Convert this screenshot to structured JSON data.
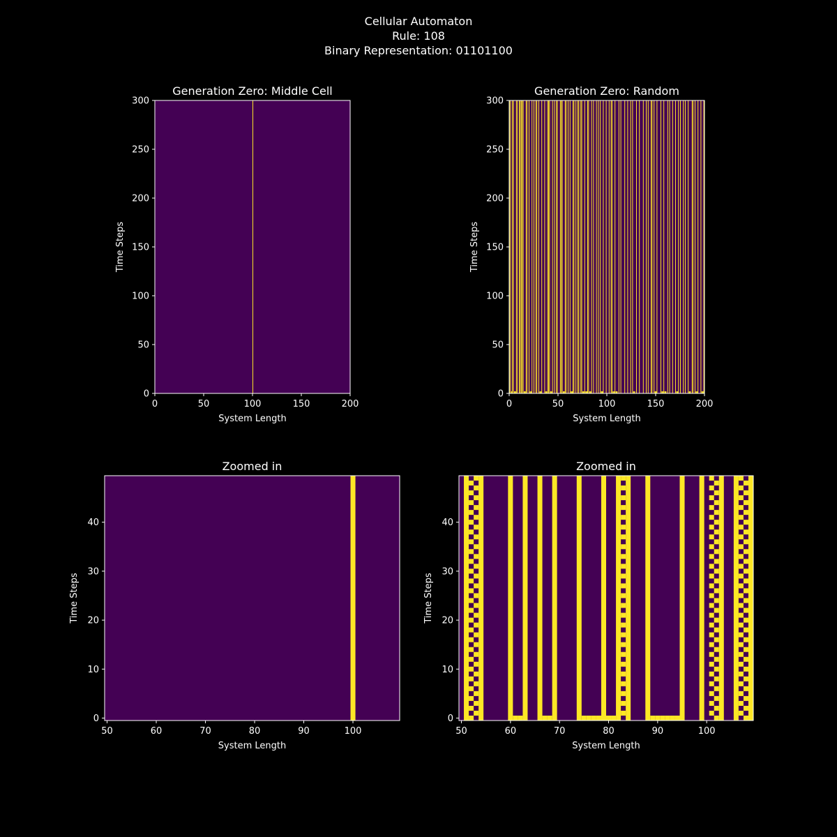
{
  "figure": {
    "title_lines": [
      "Cellular Automaton",
      "Rule: 108",
      "Binary Representation: 01101100"
    ]
  },
  "colors": {
    "background": "#000000",
    "dead": "#440154",
    "alive": "#fde725",
    "axis": "#ffffff"
  },
  "chart_data": [
    {
      "type": "heatmap",
      "title": "Generation Zero: Middle Cell",
      "xlabel": "System Length",
      "ylabel": "Time Steps",
      "xlim": [
        0,
        200
      ],
      "ylim": [
        0,
        300
      ],
      "xticks": [
        0,
        50,
        100,
        150,
        200
      ],
      "yticks": [
        0,
        50,
        100,
        150,
        200,
        250,
        300
      ],
      "alive_columns": [
        100
      ],
      "first_row_extra": [],
      "stripe_style": "thin"
    },
    {
      "type": "heatmap",
      "title": "Generation Zero: Random",
      "xlabel": "System Length",
      "ylabel": "Time Steps",
      "xlim": [
        0,
        200
      ],
      "ylim": [
        0,
        300
      ],
      "xticks": [
        0,
        50,
        100,
        150,
        200
      ],
      "yticks": [
        0,
        50,
        100,
        150,
        200,
        250,
        300
      ],
      "alive_columns": [
        0,
        1,
        3,
        4,
        7,
        8,
        10,
        11,
        12,
        13,
        14,
        17,
        18,
        20,
        23,
        25,
        27,
        28,
        30,
        33,
        36,
        39,
        40,
        41,
        44,
        46,
        48,
        49,
        52,
        53,
        54,
        57,
        58,
        60,
        62,
        65,
        66,
        68,
        70,
        71,
        73,
        74,
        77,
        80,
        81,
        84,
        86,
        89,
        91,
        93,
        96,
        99,
        102,
        104,
        105,
        108,
        112,
        114,
        118,
        121,
        124,
        126,
        130,
        133,
        137,
        140,
        142,
        145,
        146,
        148,
        151,
        155,
        158,
        162,
        164,
        167,
        170,
        173,
        175,
        178,
        180,
        183,
        187,
        188,
        190,
        193,
        196,
        199
      ],
      "first_row_extra": [
        2,
        5,
        6,
        15,
        16,
        21,
        22,
        31,
        32,
        37,
        38,
        42,
        43,
        55,
        56,
        63,
        64,
        75,
        76,
        78,
        79,
        82,
        83,
        94,
        95,
        106,
        107,
        109,
        110,
        127,
        128,
        149,
        150,
        156,
        157,
        159,
        160,
        171,
        172,
        184,
        185,
        191,
        192,
        197,
        198
      ],
      "stripe_style": "thin"
    },
    {
      "type": "heatmap",
      "title": "Zoomed in",
      "xlabel": "System Length",
      "ylabel": "Time Steps",
      "xlim": [
        50,
        109
      ],
      "ylim": [
        0,
        49
      ],
      "xticks": [
        50,
        60,
        70,
        80,
        90,
        100
      ],
      "yticks": [
        0,
        10,
        20,
        30,
        40
      ],
      "alive_columns": [
        100
      ],
      "checker_columns": [],
      "first_row_extra": []
    },
    {
      "type": "heatmap",
      "title": "Zoomed in",
      "xlabel": "System Length",
      "ylabel": "Time Steps",
      "xlim": [
        50,
        109
      ],
      "ylim": [
        0,
        49
      ],
      "xticks": [
        50,
        60,
        70,
        80,
        90,
        100
      ],
      "yticks": [
        0,
        10,
        20,
        30,
        40
      ],
      "alive_columns": [
        51,
        54,
        60,
        63,
        66,
        69,
        74,
        79,
        82,
        84,
        88,
        95,
        99,
        103,
        106,
        109
      ],
      "checker_columns": [
        52,
        53,
        83,
        101,
        102,
        107,
        108
      ],
      "first_row_extra": [
        61,
        62,
        67,
        68,
        75,
        76,
        77,
        78,
        80,
        81,
        89,
        90,
        91,
        92,
        93,
        94,
        109
      ]
    }
  ]
}
